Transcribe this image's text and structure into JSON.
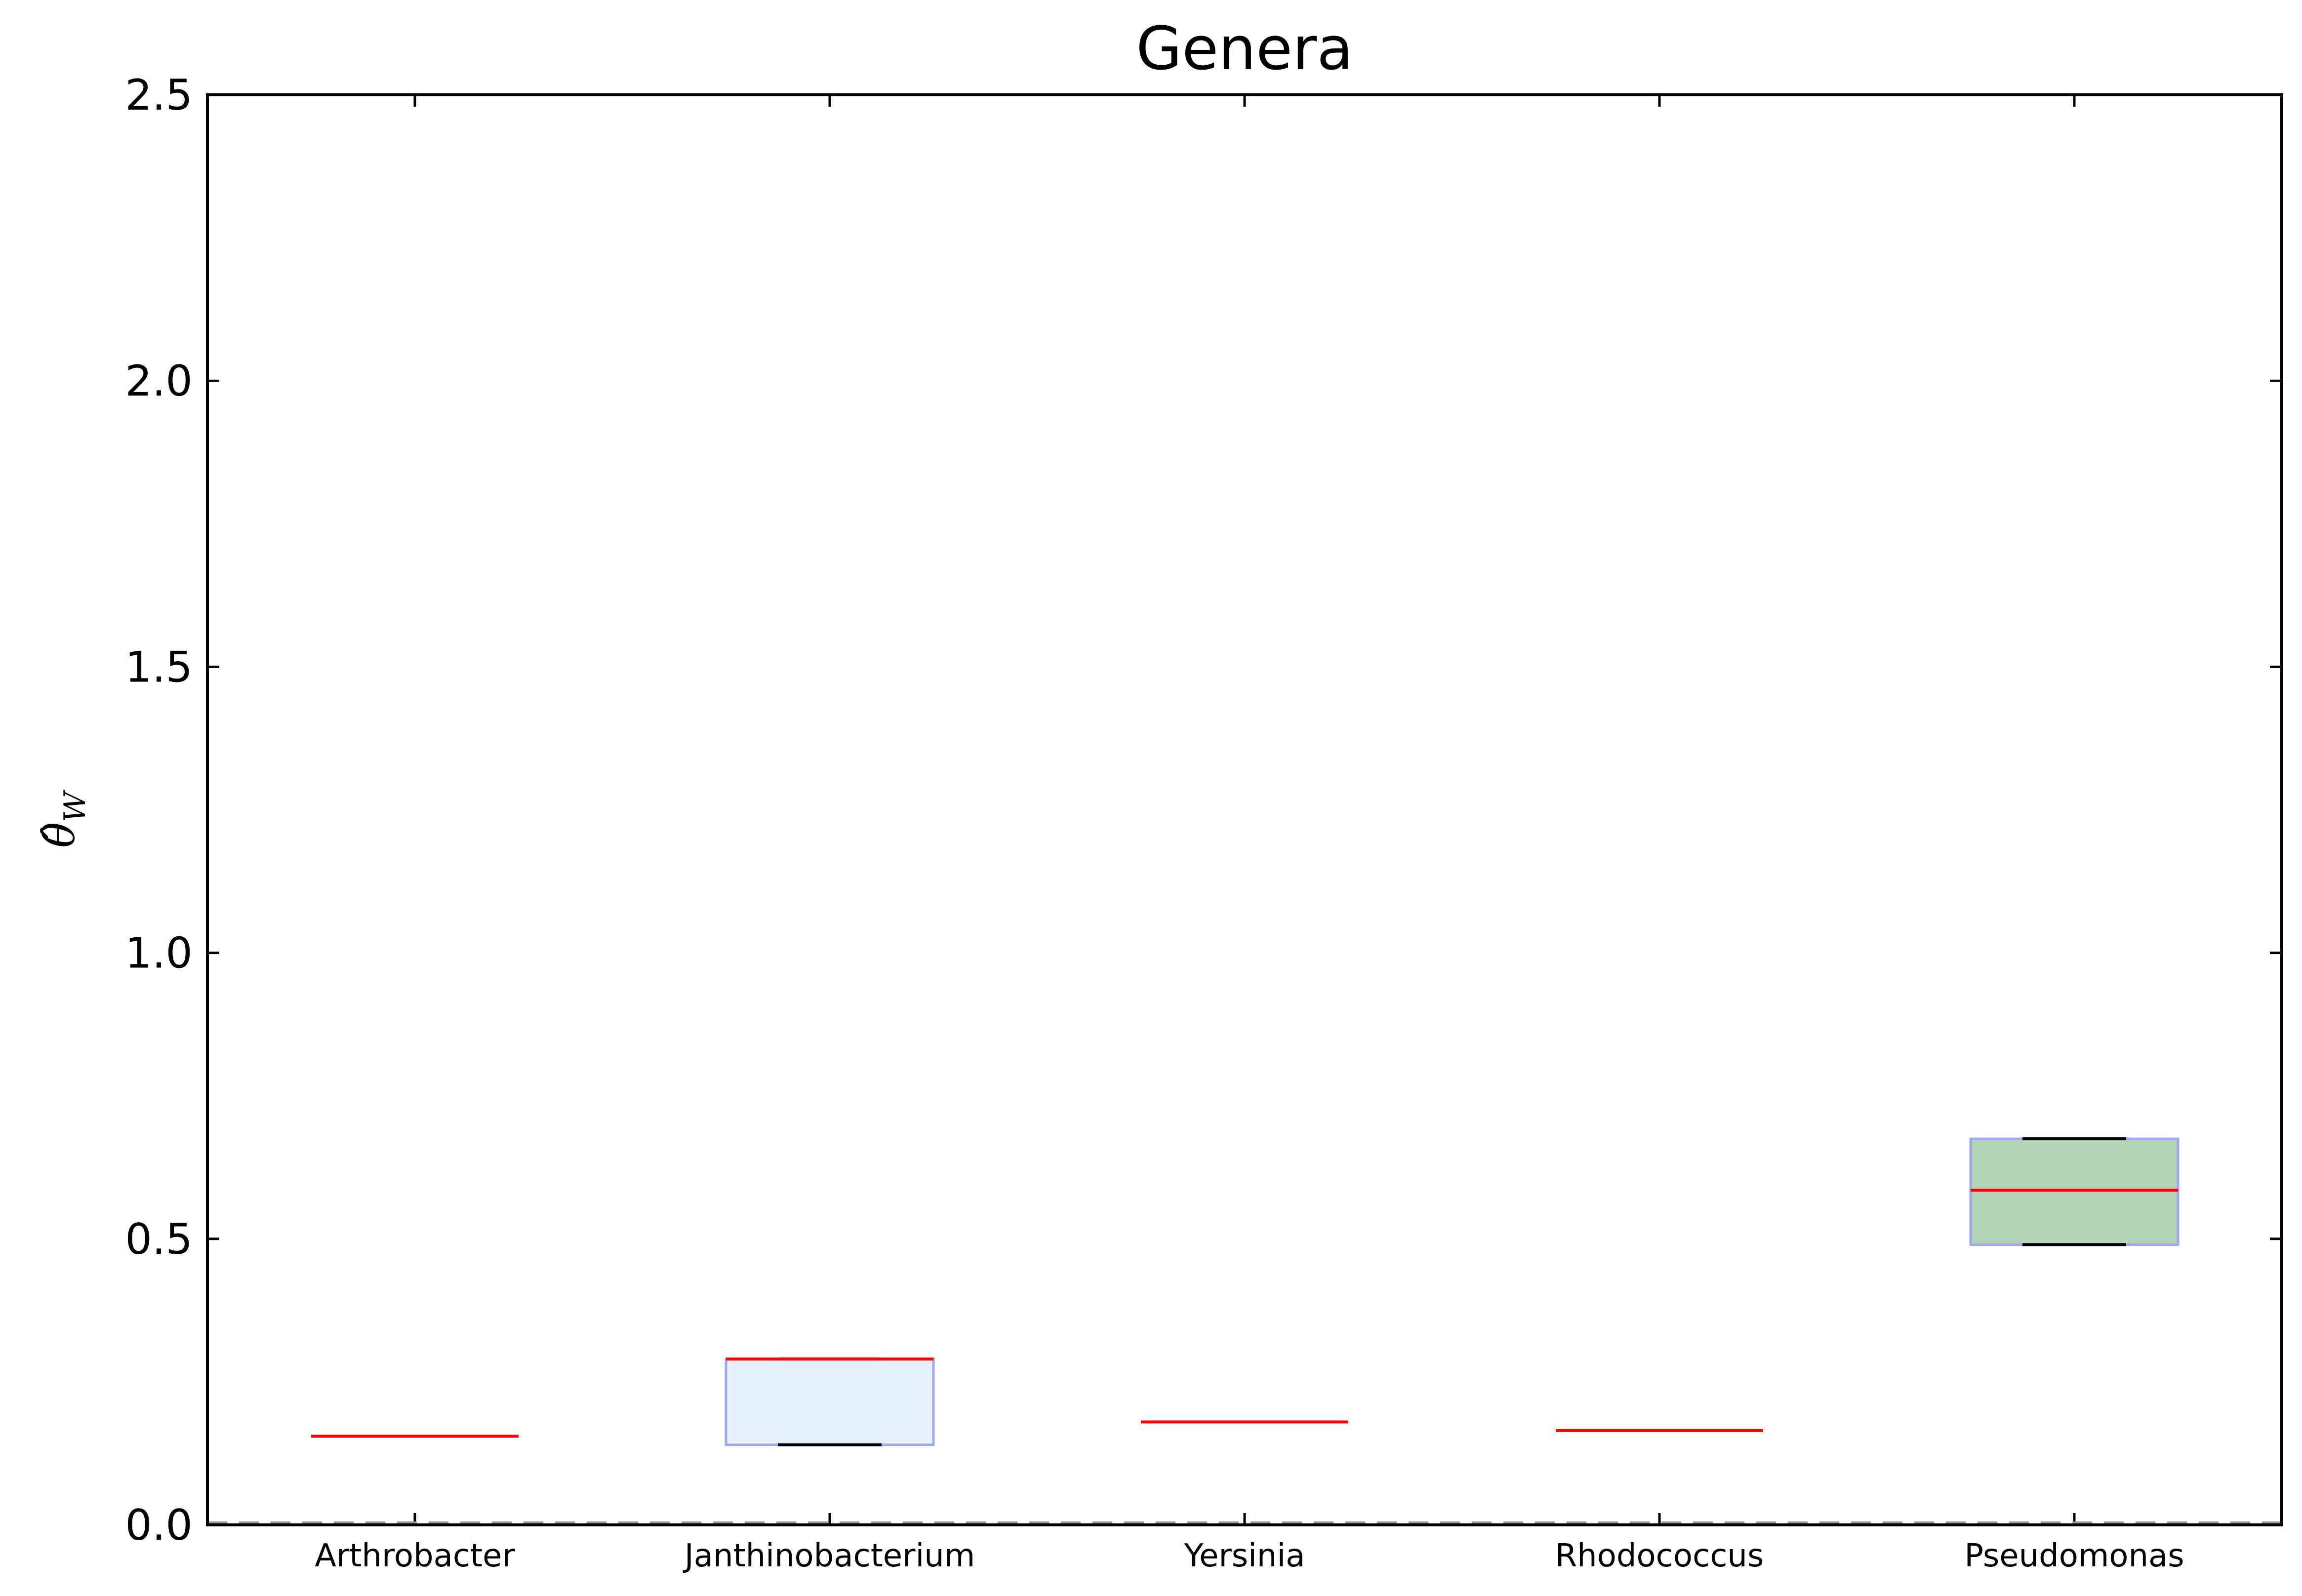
{
  "chart_data": {
    "type": "box",
    "title": "Genera",
    "xlabel": "",
    "ylabel": "θ̂",
    "ylabel_subscript": "W",
    "ylim": [
      0.0,
      2.5
    ],
    "yticks": [
      "0.0",
      "0.5",
      "1.0",
      "1.5",
      "2.0",
      "2.5"
    ],
    "ytick_values": [
      0.0,
      0.5,
      1.0,
      1.5,
      2.0,
      2.5
    ],
    "grid": false,
    "baseline_style": "dashed",
    "categories": [
      "Arthrobacter",
      "Janthinobacterium",
      "Yersinia",
      "Rhodococcus",
      "Pseudomonas"
    ],
    "boxes": [
      {
        "category": "Arthrobacter",
        "q1": 0.155,
        "median": 0.155,
        "q3": 0.155,
        "whisker_low": 0.155,
        "whisker_high": 0.155,
        "fill": "#ffffff"
      },
      {
        "category": "Janthinobacterium",
        "q1": 0.14,
        "median": 0.29,
        "q3": 0.29,
        "whisker_low": 0.14,
        "whisker_high": 0.29,
        "fill": "#e6f2f8"
      },
      {
        "category": "Yersinia",
        "q1": 0.18,
        "median": 0.18,
        "q3": 0.18,
        "whisker_low": 0.18,
        "whisker_high": 0.18,
        "fill": "#ffffff"
      },
      {
        "category": "Rhodococcus",
        "q1": 0.165,
        "median": 0.165,
        "q3": 0.165,
        "whisker_low": 0.165,
        "whisker_high": 0.165,
        "fill": "#ffffff"
      },
      {
        "category": "Pseudomonas",
        "q1": 0.49,
        "median": 0.585,
        "q3": 0.675,
        "whisker_low": 0.49,
        "whisker_high": 0.675,
        "fill": "#b5d3b5"
      }
    ],
    "colors": {
      "median": "#ff0000",
      "box_edge": "#9fa8f0",
      "whisker_cap": "#000000",
      "baseline": "#9a9a9a"
    }
  }
}
